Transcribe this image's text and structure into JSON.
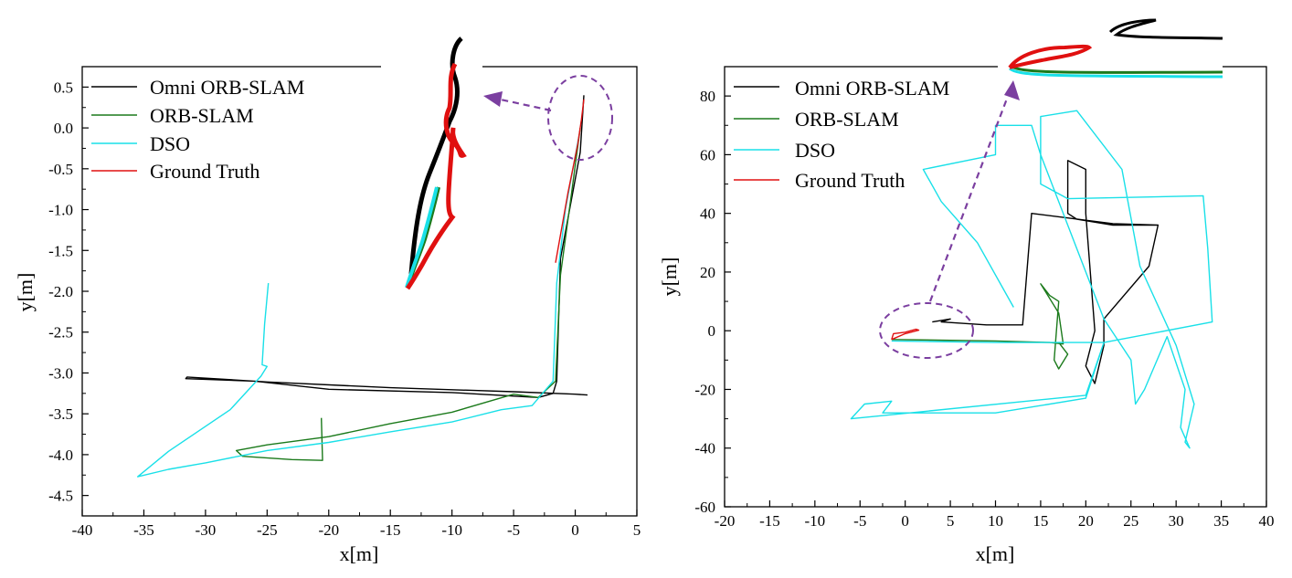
{
  "chart_data": [
    {
      "type": "line",
      "xlabel": "x[m]",
      "ylabel": "y[m]",
      "xlim": [
        -40,
        5
      ],
      "ylim": [
        -4.75,
        0.75
      ],
      "xticks": [
        "-40",
        "-35",
        "-30",
        "-25",
        "-20",
        "-15",
        "-10",
        "-5",
        "0",
        "5"
      ],
      "yticks": [
        "0.5",
        "0.0",
        "-0.5",
        "-1.0",
        "-1.5",
        "-2.0",
        "-2.5",
        "-3.0",
        "-3.5",
        "-4.0",
        "-4.5"
      ],
      "legend_position": "top-left",
      "series": [
        {
          "name": "Omni ORB-SLAM",
          "color": "#000000",
          "points": [
            [
              0.7,
              0.4
            ],
            [
              0.4,
              -0.3
            ],
            [
              -1.2,
              -1.6
            ],
            [
              -1.5,
              -3.1
            ],
            [
              -1.8,
              -3.25
            ],
            [
              -3.0,
              -3.3
            ],
            [
              -10.0,
              -3.24
            ],
            [
              -20.0,
              -3.2
            ],
            [
              -26.0,
              -3.1
            ],
            [
              -31.6,
              -3.07
            ],
            [
              -31.5,
              -3.05
            ],
            [
              -25.0,
              -3.11
            ],
            [
              -15.0,
              -3.18
            ],
            [
              -5.0,
              -3.23
            ],
            [
              0.0,
              -3.26
            ],
            [
              1.0,
              -3.27
            ]
          ]
        },
        {
          "name": "ORB-SLAM",
          "color": "#1b7a1b",
          "points": [
            [
              0.4,
              0.0
            ],
            [
              -0.3,
              -0.8
            ],
            [
              -1.2,
              -1.8
            ],
            [
              -1.6,
              -3.1
            ],
            [
              -3.0,
              -3.3
            ],
            [
              -5.0,
              -3.26
            ],
            [
              -10.0,
              -3.48
            ],
            [
              -15.0,
              -3.62
            ],
            [
              -20.0,
              -3.78
            ],
            [
              -25.0,
              -3.88
            ],
            [
              -27.5,
              -3.95
            ],
            [
              -27.0,
              -4.02
            ],
            [
              -23.0,
              -4.06
            ],
            [
              -20.5,
              -4.07
            ],
            [
              -20.6,
              -3.55
            ]
          ]
        },
        {
          "name": "DSO",
          "color": "#19e0e8",
          "points": [
            [
              0.3,
              -0.1
            ],
            [
              -0.8,
              -1.0
            ],
            [
              -1.5,
              -1.9
            ],
            [
              -1.8,
              -3.1
            ],
            [
              -3.5,
              -3.4
            ],
            [
              -6.0,
              -3.45
            ],
            [
              -10.0,
              -3.6
            ],
            [
              -15.0,
              -3.72
            ],
            [
              -20.0,
              -3.85
            ],
            [
              -25.0,
              -3.95
            ],
            [
              -30.0,
              -4.1
            ],
            [
              -33.0,
              -4.18
            ],
            [
              -35.5,
              -4.27
            ],
            [
              -33.0,
              -3.96
            ],
            [
              -28.0,
              -3.45
            ],
            [
              -25.5,
              -3.04
            ],
            [
              -25.0,
              -2.92
            ],
            [
              -25.4,
              -2.9
            ],
            [
              -25.2,
              -2.4
            ],
            [
              -24.9,
              -1.9
            ]
          ]
        },
        {
          "name": "Ground Truth",
          "color": "#e01010",
          "points": [
            [
              0.7,
              0.35
            ],
            [
              0.5,
              0.1
            ],
            [
              0.2,
              -0.2
            ],
            [
              -0.6,
              -0.8
            ],
            [
              -1.6,
              -1.65
            ]
          ]
        }
      ]
    },
    {
      "type": "line",
      "xlabel": "x[m]",
      "ylabel": "y[m]",
      "xlim": [
        -20,
        40
      ],
      "ylim": [
        -60,
        90
      ],
      "xticks": [
        "-20",
        "-15",
        "-10",
        "-5",
        "0",
        "5",
        "10",
        "15",
        "20",
        "25",
        "30",
        "35",
        "40"
      ],
      "yticks": [
        "80",
        "60",
        "40",
        "20",
        "0",
        "-20",
        "-40",
        "-60"
      ],
      "legend_position": "top-left",
      "series": [
        {
          "name": "Omni ORB-SLAM",
          "color": "#000000",
          "points": [
            [
              3.0,
              3.0
            ],
            [
              5.0,
              4.0
            ],
            [
              4.0,
              3.0
            ],
            [
              9.0,
              2.0
            ],
            [
              13.0,
              2.0
            ],
            [
              14.0,
              40.0
            ],
            [
              23.0,
              36.5
            ],
            [
              28.0,
              36.0
            ],
            [
              27.0,
              22.0
            ],
            [
              22.0,
              4.0
            ],
            [
              22.0,
              -5.0
            ],
            [
              21.0,
              -18.0
            ],
            [
              20.0,
              -12.0
            ],
            [
              21.0,
              0.0
            ],
            [
              20.0,
              40.0
            ],
            [
              20.0,
              55.0
            ],
            [
              18.0,
              58.0
            ],
            [
              18.0,
              40.0
            ],
            [
              19.0,
              38.0
            ],
            [
              23.0,
              36.0
            ],
            [
              28.0,
              36.0
            ]
          ]
        },
        {
          "name": "ORB-SLAM",
          "color": "#1b7a1b",
          "points": [
            [
              -1.5,
              -3.0
            ],
            [
              10.0,
              -3.5
            ],
            [
              16.0,
              -4.0
            ],
            [
              17.5,
              -4.5
            ],
            [
              17.0,
              6.0
            ],
            [
              15.0,
              16.0
            ],
            [
              16.0,
              12.0
            ],
            [
              17.0,
              10.0
            ],
            [
              16.5,
              -10.0
            ],
            [
              17.0,
              -13.0
            ],
            [
              18.0,
              -8.0
            ],
            [
              17.0,
              -4.0
            ]
          ]
        },
        {
          "name": "DSO",
          "color": "#19e0e8",
          "points": [
            [
              -1.5,
              -3.5
            ],
            [
              10.0,
              -4.0
            ],
            [
              22.0,
              -4.0
            ],
            [
              20.0,
              -22.0
            ],
            [
              -6.0,
              -30.0
            ],
            [
              -4.5,
              -25.0
            ],
            [
              -1.5,
              -24.0
            ],
            [
              -2.5,
              -28.0
            ],
            [
              10.0,
              -28.0
            ],
            [
              20.0,
              -23.0
            ],
            [
              22.0,
              -4.0
            ],
            [
              34.0,
              3.0
            ],
            [
              33.5,
              28.0
            ],
            [
              33.0,
              46.0
            ],
            [
              18.0,
              45.0
            ],
            [
              15.0,
              50.0
            ],
            [
              15.0,
              73.0
            ],
            [
              19.0,
              75.0
            ],
            [
              24.0,
              55.0
            ],
            [
              26.0,
              22.0
            ],
            [
              30.0,
              -5.0
            ],
            [
              32.0,
              -25.0
            ],
            [
              31.0,
              -38.0
            ],
            [
              31.5,
              -40.0
            ],
            [
              30.5,
              -33.0
            ],
            [
              31.0,
              -20.0
            ],
            [
              29.0,
              -2.0
            ],
            [
              26.5,
              -20.0
            ],
            [
              25.5,
              -25.0
            ],
            [
              25.0,
              -10.0
            ],
            [
              22.0,
              4.0
            ],
            [
              15.0,
              60.0
            ],
            [
              14.0,
              70.0
            ],
            [
              10.0,
              70.0
            ],
            [
              10.0,
              60.0
            ],
            [
              2.0,
              55.0
            ],
            [
              4.0,
              44.0
            ],
            [
              8.0,
              30.0
            ],
            [
              12.0,
              8.0
            ]
          ]
        },
        {
          "name": "Ground Truth",
          "color": "#e01010",
          "points": [
            [
              -1.5,
              -3.0
            ],
            [
              -1.3,
              -1.0
            ],
            [
              0.0,
              -0.5
            ],
            [
              1.2,
              0.5
            ],
            [
              1.5,
              0.2
            ],
            [
              0.0,
              -1.0
            ],
            [
              -1.5,
              -3.0
            ]
          ]
        }
      ]
    }
  ]
}
